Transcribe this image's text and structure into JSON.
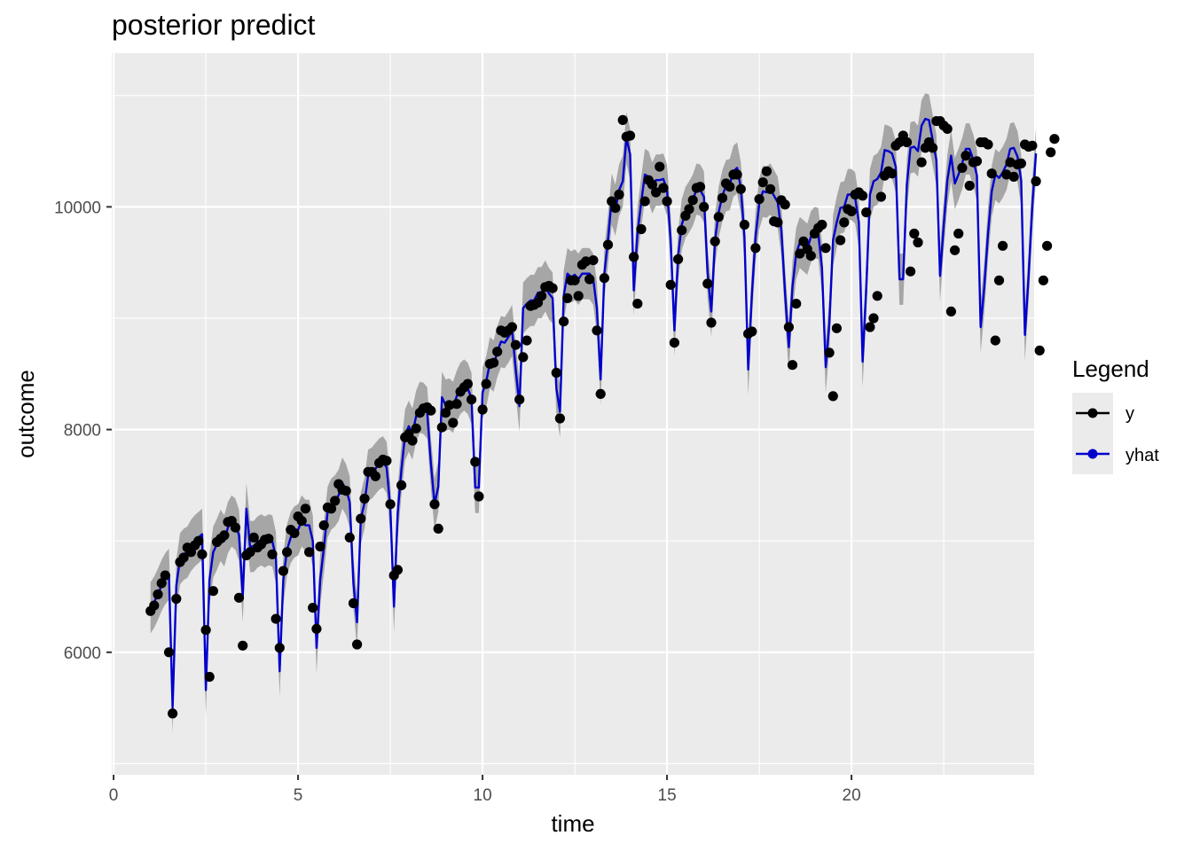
{
  "chart_data": {
    "type": "line",
    "title": "posterior predict",
    "xlabel": "time",
    "ylabel": "outcome",
    "xlim": [
      -0.05,
      24.95
    ],
    "ylim": [
      4900,
      11380
    ],
    "x_ticks": [
      0,
      5,
      10,
      15,
      20
    ],
    "y_ticks": [
      6000,
      8000,
      10000
    ],
    "grid": true,
    "legend": {
      "title": "Legend",
      "position": "right",
      "entries": [
        {
          "label": "y",
          "color": "#000000"
        },
        {
          "label": "yhat",
          "color": "#0000cd"
        }
      ]
    },
    "colors": {
      "panel": "#ebebeb",
      "grid_major": "#ffffff",
      "band": "#a6a6a6",
      "y": "#000000",
      "yhat": "#0000cd"
    },
    "x_start": 1.0,
    "x_step": 0.1,
    "series": [
      {
        "name": "y",
        "values": [
          6370,
          6420,
          6520,
          6620,
          6690,
          6000,
          5450,
          6480,
          6810,
          6850,
          6940,
          6900,
          6960,
          7000,
          6880,
          6200,
          5780,
          6550,
          6990,
          7020,
          7050,
          7170,
          7180,
          7120,
          6490,
          6060,
          6870,
          6900,
          7030,
          6940,
          6970,
          7010,
          7020,
          6880,
          6300,
          6040,
          6730,
          6900,
          7100,
          7070,
          7220,
          7180,
          7290,
          6900,
          6400,
          6210,
          6950,
          7140,
          7300,
          7290,
          7360,
          7510,
          7460,
          7450,
          7030,
          6440,
          6070,
          7200,
          7380,
          7620,
          7620,
          7580,
          7700,
          7730,
          7720,
          7330,
          6690,
          6740,
          7500,
          7930,
          7960,
          7900,
          8010,
          8150,
          8190,
          8200,
          8170,
          7330,
          7110,
          8020,
          8150,
          8220,
          8060,
          8230,
          8340,
          8380,
          8410,
          8270,
          7710,
          7400,
          8180,
          8410,
          8590,
          8600,
          8700,
          8890,
          8870,
          8890,
          8920,
          8760,
          8270,
          8650,
          8800,
          9110,
          9120,
          9140,
          9200,
          9280,
          9290,
          9270,
          8510,
          8100,
          8970,
          9180,
          9340,
          9340,
          9200,
          9480,
          9510,
          9350,
          9520,
          8890,
          8320,
          9360,
          9660,
          10050,
          9990,
          10110,
          10780,
          10630,
          10640,
          9550,
          9130,
          9800,
          10050,
          10240,
          10200,
          10130,
          10360,
          10170,
          10050,
          9300,
          8780,
          9530,
          9790,
          9920,
          9980,
          10060,
          10170,
          10180,
          10000,
          9310,
          8960,
          9690,
          9910,
          10080,
          10210,
          10180,
          10290,
          10290,
          10160,
          9840,
          8860,
          8880,
          9630,
          10070,
          10220,
          10320,
          10160,
          9870,
          9860,
          10060,
          10020,
          8920,
          8580,
          9130,
          9580,
          9690,
          9620,
          9560,
          9760,
          9810,
          9840,
          9630,
          8690,
          8300,
          8910,
          9700,
          9860,
          9980,
          9960,
          10110,
          10130,
          10100,
          9950,
          8920,
          9000,
          9200,
          10090,
          10280,
          10320,
          10300,
          10550,
          10580,
          10640,
          10580,
          9420,
          9760,
          9680,
          10400,
          10530,
          10580,
          10530,
          10770,
          10770,
          10730,
          10700,
          9060,
          9610,
          9760,
          10350,
          10460,
          10190,
          10400,
          10410,
          10580,
          10580,
          10560,
          10300,
          8800,
          9340,
          9650,
          10290,
          10400,
          10270,
          10380,
          10390,
          10560,
          10540,
          10550,
          10230,
          8710,
          9340,
          9650,
          10490,
          10610
        ]
      },
      {
        "name": "yhat",
        "values": [
          6400,
          6450,
          6520,
          6600,
          6660,
          6700,
          5500,
          6600,
          6840,
          6880,
          6900,
          6960,
          7000,
          7030,
          7060,
          5660,
          6650,
          6900,
          6970,
          7050,
          7000,
          7120,
          7180,
          7150,
          7050,
          6500,
          7290,
          6950,
          6950,
          6990,
          7010,
          6990,
          7010,
          7000,
          6850,
          5830,
          6650,
          6920,
          7030,
          7080,
          7100,
          7180,
          7140,
          7140,
          7000,
          6040,
          6650,
          6940,
          7260,
          7330,
          7360,
          7410,
          7520,
          7460,
          7350,
          6620,
          6270,
          7200,
          7340,
          7590,
          7610,
          7650,
          7690,
          7710,
          7660,
          7300,
          6410,
          7250,
          7640,
          7950,
          8030,
          7960,
          8120,
          8200,
          8190,
          8150,
          7700,
          7330,
          7490,
          8290,
          8220,
          8230,
          8200,
          8300,
          8370,
          8400,
          8370,
          8280,
          7480,
          7480,
          8330,
          8430,
          8600,
          8570,
          8700,
          8790,
          8780,
          8830,
          8890,
          8540,
          8210,
          9090,
          9130,
          9160,
          9160,
          9230,
          9230,
          9290,
          9220,
          9180,
          8370,
          8160,
          9200,
          9400,
          9370,
          9390,
          9350,
          9400,
          9400,
          9400,
          9350,
          9090,
          8450,
          9400,
          9700,
          10070,
          9970,
          10150,
          10230,
          10620,
          10470,
          9250,
          9770,
          10040,
          10290,
          10270,
          10170,
          10240,
          10240,
          10250,
          10150,
          9700,
          8890,
          9560,
          9840,
          9950,
          10000,
          10060,
          10160,
          10150,
          10090,
          9410,
          9060,
          9700,
          9950,
          10100,
          10190,
          10200,
          10320,
          10350,
          10170,
          9730,
          8540,
          9220,
          9730,
          10030,
          10140,
          10130,
          10160,
          10100,
          10040,
          9790,
          9220,
          8740,
          9280,
          9580,
          9680,
          9650,
          9620,
          9730,
          9770,
          9760,
          9450,
          8560,
          8950,
          9700,
          9860,
          9990,
          10000,
          10110,
          10110,
          10080,
          9860,
          8610,
          9260,
          10110,
          10230,
          10250,
          10310,
          10510,
          10500,
          10480,
          10360,
          9350,
          9350,
          10200,
          10530,
          10540,
          10500,
          10730,
          10790,
          10780,
          10600,
          10420,
          9380,
          9840,
          10240,
          10460,
          10210,
          10290,
          10390,
          10520,
          10520,
          10420,
          10280,
          8920,
          9280,
          9760,
          10140,
          10290,
          10260,
          10310,
          10380,
          10520,
          10530,
          10450,
          10240,
          8850,
          9380,
          10010,
          10480
        ]
      }
    ],
    "band_halfwidth": 230
  },
  "legend": {
    "title": "Legend",
    "items": [
      {
        "label": "y"
      },
      {
        "label": "yhat"
      }
    ]
  }
}
